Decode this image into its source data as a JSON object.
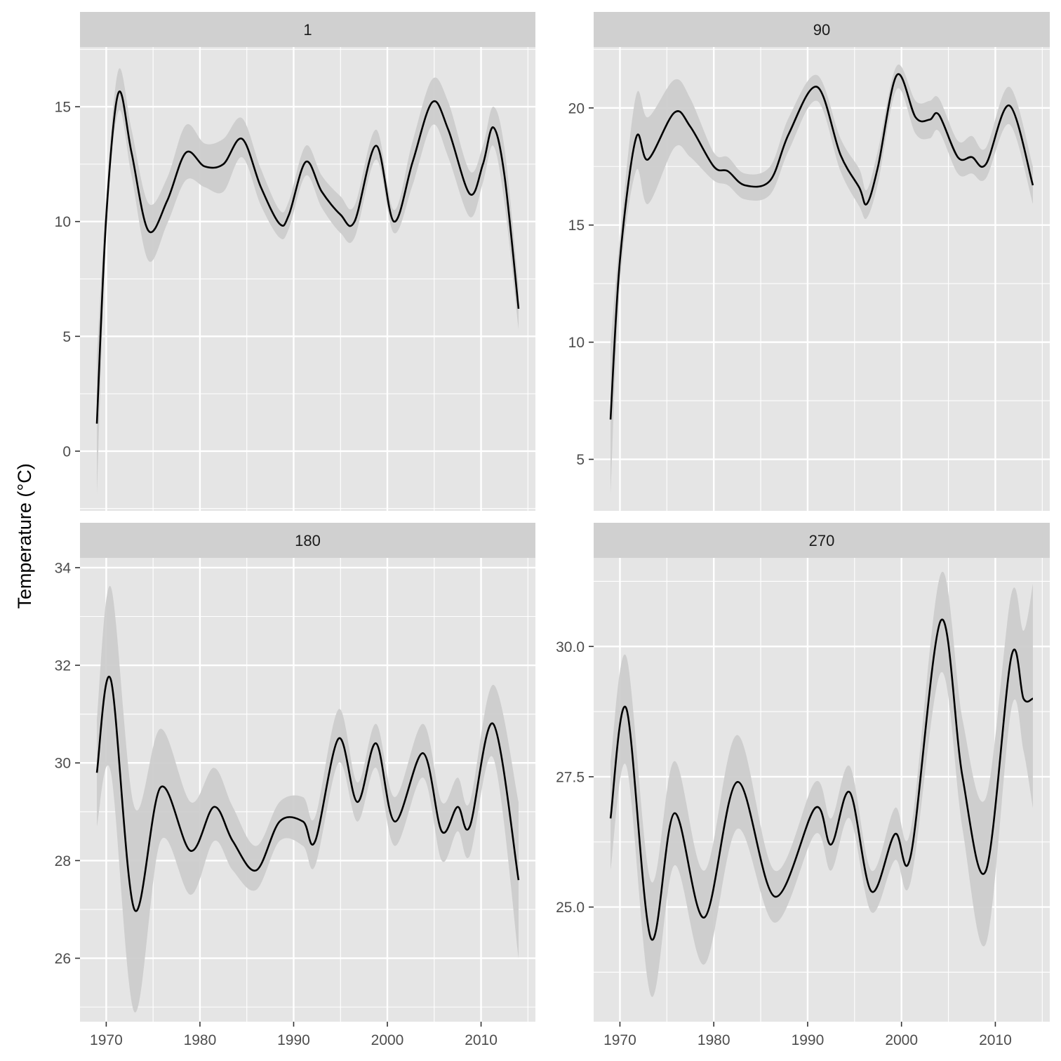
{
  "ylabel": "Temperature (°C)",
  "colors": {
    "panel_bg": "#E5E5E5",
    "strip_bg": "#D0D0D0",
    "grid": "#FFFFFF",
    "line": "#000000",
    "ribbon": "#CBCBCB",
    "tick_text": "#4D4D4D",
    "strip_text": "#1A1A1A",
    "axis_title": "#000000",
    "tick_mark": "#333333"
  },
  "chart_data": [
    {
      "type": "line",
      "facet": "1",
      "xlim": [
        1967.2,
        2015.8
      ],
      "ylim": [
        -2.6,
        17.6
      ],
      "x_ticks": [
        1970,
        1980,
        1990,
        2000,
        2010
      ],
      "y_ticks": [
        0,
        5,
        10,
        15
      ],
      "y_tick_labels": [
        "0",
        "5",
        "10",
        "15"
      ],
      "series": [
        {
          "x": [
            1969,
            1970,
            1971.3,
            1972.7,
            1974.5,
            1976.5,
            1978.5,
            1980.5,
            1982.5,
            1984.5,
            1986.5,
            1988.5,
            1989.5,
            1991.3,
            1993,
            1995,
            1996.5,
            1998.8,
            2000.7,
            2002.7,
            2004.8,
            2006.5,
            2008.8,
            2010.2,
            2011.3,
            2012.5,
            2014
          ],
          "y": [
            1.2,
            10.2,
            15.6,
            13.0,
            9.6,
            10.9,
            13.0,
            12.4,
            12.5,
            13.6,
            11.5,
            9.9,
            10.3,
            12.6,
            11.3,
            10.3,
            10.0,
            13.3,
            10.0,
            12.6,
            15.2,
            14.0,
            11.2,
            12.5,
            14.1,
            12.0,
            6.2
          ],
          "lower": [
            -1.9,
            9.4,
            14.8,
            12.0,
            8.3,
            9.9,
            11.8,
            11.5,
            11.3,
            12.8,
            10.7,
            9.3,
            9.7,
            12.0,
            10.6,
            9.5,
            9.3,
            12.7,
            9.5,
            11.6,
            14.2,
            12.8,
            10.2,
            11.7,
            13.3,
            10.8,
            5.3
          ],
          "upper": [
            4.1,
            11.0,
            16.6,
            14.0,
            10.8,
            11.9,
            14.2,
            13.4,
            13.6,
            14.5,
            12.3,
            10.5,
            10.9,
            13.3,
            12.0,
            11.1,
            10.7,
            14.0,
            10.5,
            13.5,
            16.2,
            15.2,
            12.2,
            13.3,
            15.0,
            13.2,
            7.2
          ]
        }
      ]
    },
    {
      "type": "line",
      "facet": "90",
      "xlim": [
        1967.2,
        2015.8
      ],
      "ylim": [
        2.8,
        22.6
      ],
      "x_ticks": [
        1970,
        1980,
        1990,
        2000,
        2010
      ],
      "y_ticks": [
        5,
        10,
        15,
        20
      ],
      "y_tick_labels": [
        "5",
        "10",
        "15",
        "20"
      ],
      "series": [
        {
          "x": [
            1969,
            1970,
            1971.7,
            1973,
            1975.8,
            1977.5,
            1980,
            1981.5,
            1983.3,
            1986,
            1988,
            1991,
            1993.5,
            1995.5,
            1996.3,
            1997.5,
            1999.5,
            2001.5,
            2003,
            2004,
            2006,
            2007.5,
            2009,
            2011.5,
            2014
          ],
          "y": [
            6.7,
            13.5,
            18.7,
            17.8,
            19.8,
            19.2,
            17.5,
            17.3,
            16.7,
            16.9,
            18.9,
            20.9,
            18.0,
            16.6,
            15.9,
            17.5,
            21.4,
            19.6,
            19.5,
            19.7,
            17.9,
            17.9,
            17.6,
            20.1,
            16.7
          ],
          "lower": [
            3.5,
            12.5,
            17.3,
            15.9,
            18.3,
            17.9,
            16.9,
            16.7,
            16.1,
            16.3,
            18.2,
            20.3,
            17.3,
            15.8,
            15.3,
            16.8,
            20.8,
            18.9,
            18.7,
            19.0,
            17.2,
            17.2,
            17.0,
            19.3,
            15.9
          ],
          "upper": [
            9.9,
            14.5,
            20.5,
            19.6,
            21.2,
            20.4,
            18.1,
            17.9,
            17.2,
            17.5,
            19.6,
            21.4,
            18.7,
            17.4,
            16.5,
            18.2,
            21.8,
            20.3,
            20.3,
            20.4,
            18.6,
            18.8,
            18.3,
            20.9,
            17.5
          ]
        }
      ]
    },
    {
      "type": "line",
      "facet": "180",
      "xlim": [
        1967.2,
        2015.8
      ],
      "ylim": [
        24.7,
        34.2
      ],
      "x_ticks": [
        1970,
        1980,
        1990,
        2000,
        2010
      ],
      "y_ticks": [
        26,
        28,
        30,
        32,
        34
      ],
      "y_tick_labels": [
        "26",
        "28",
        "30",
        "32",
        "34"
      ],
      "series": [
        {
          "x": [
            1969,
            1970.5,
            1973,
            1975.8,
            1979,
            1981.5,
            1983.5,
            1986,
            1988.5,
            1991,
            1992.3,
            1994.8,
            1996.8,
            1998.8,
            2000.8,
            2003.8,
            2005.8,
            2007.5,
            2008.8,
            2011.3,
            2014
          ],
          "y": [
            29.8,
            31.7,
            27.0,
            29.5,
            28.2,
            29.1,
            28.4,
            27.8,
            28.8,
            28.8,
            28.4,
            30.5,
            29.2,
            30.4,
            28.8,
            30.2,
            28.6,
            29.1,
            28.7,
            30.8,
            27.6
          ],
          "lower": [
            28.7,
            29.8,
            24.9,
            28.4,
            27.3,
            28.4,
            27.8,
            27.4,
            28.4,
            28.3,
            27.9,
            30.0,
            28.8,
            29.9,
            28.3,
            29.7,
            28.0,
            28.6,
            28.1,
            30.1,
            26.0
          ],
          "upper": [
            30.9,
            33.6,
            29.1,
            30.7,
            29.2,
            29.9,
            29.1,
            28.3,
            29.2,
            29.3,
            28.9,
            31.1,
            29.6,
            30.8,
            29.3,
            30.8,
            29.2,
            29.7,
            29.2,
            31.6,
            29.2
          ]
        }
      ]
    },
    {
      "type": "line",
      "facet": "270",
      "xlim": [
        1967.2,
        2015.8
      ],
      "ylim": [
        22.8,
        31.7
      ],
      "x_ticks": [
        1970,
        1980,
        1990,
        2000,
        2010
      ],
      "y_ticks": [
        25.0,
        27.5,
        30.0
      ],
      "y_tick_labels": [
        "25.0",
        "27.5",
        "30.0"
      ],
      "series": [
        {
          "x": [
            1969,
            1970.7,
            1973.3,
            1975.8,
            1979,
            1982.5,
            1986.5,
            1990.8,
            1992.5,
            1994.5,
            1996.8,
            1999.3,
            2001,
            2004.2,
            2006.5,
            2009,
            2011.7,
            2013,
            2014
          ],
          "y": [
            26.7,
            28.8,
            24.4,
            26.8,
            24.8,
            27.4,
            25.2,
            26.9,
            26.2,
            27.2,
            25.3,
            26.4,
            26.0,
            30.5,
            27.5,
            25.7,
            29.8,
            29.0,
            29.0
          ],
          "lower": [
            25.7,
            27.7,
            23.3,
            25.8,
            23.9,
            26.5,
            24.7,
            26.4,
            25.7,
            26.7,
            24.9,
            25.9,
            25.5,
            29.5,
            26.5,
            24.3,
            28.8,
            28.0,
            26.9
          ],
          "upper": [
            27.8,
            29.8,
            25.5,
            27.8,
            25.7,
            28.3,
            25.7,
            27.4,
            26.7,
            27.7,
            25.7,
            26.9,
            26.5,
            31.4,
            28.6,
            27.1,
            31.0,
            30.3,
            31.2
          ]
        }
      ]
    }
  ]
}
